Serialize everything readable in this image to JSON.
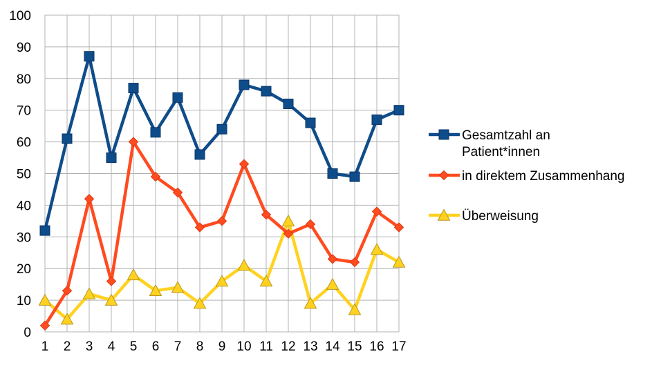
{
  "chart_data": {
    "type": "line",
    "title": "",
    "xlabel": "",
    "ylabel": "",
    "categories": [
      "1",
      "2",
      "3",
      "4",
      "5",
      "6",
      "7",
      "8",
      "9",
      "10",
      "11",
      "12",
      "13",
      "14",
      "15",
      "16",
      "17"
    ],
    "ylim": [
      0,
      100
    ],
    "yticks": [
      0,
      10,
      20,
      30,
      40,
      50,
      60,
      70,
      80,
      90,
      100
    ],
    "grid": true,
    "legend_position": "right",
    "series": [
      {
        "name_lines": [
          "Gesamtzahl an",
          "Patient*innen"
        ],
        "color": "#0F4C8A",
        "marker": "square",
        "values": [
          32,
          61,
          87,
          55,
          77,
          63,
          74,
          56,
          64,
          78,
          76,
          72,
          66,
          50,
          49,
          67,
          70
        ]
      },
      {
        "name_lines": [
          "in direktem Zusammenhang"
        ],
        "color": "#FF4B1F",
        "marker": "diamond",
        "values": [
          2,
          13,
          42,
          16,
          60,
          49,
          44,
          33,
          35,
          53,
          37,
          31,
          34,
          23,
          22,
          38,
          33
        ]
      },
      {
        "name_lines": [
          "Überweisung"
        ],
        "color": "#FFD21F",
        "marker": "triangle",
        "values": [
          10,
          4,
          12,
          10,
          18,
          13,
          14,
          9,
          16,
          21,
          16,
          35,
          9,
          15,
          7,
          26,
          22
        ]
      }
    ]
  }
}
